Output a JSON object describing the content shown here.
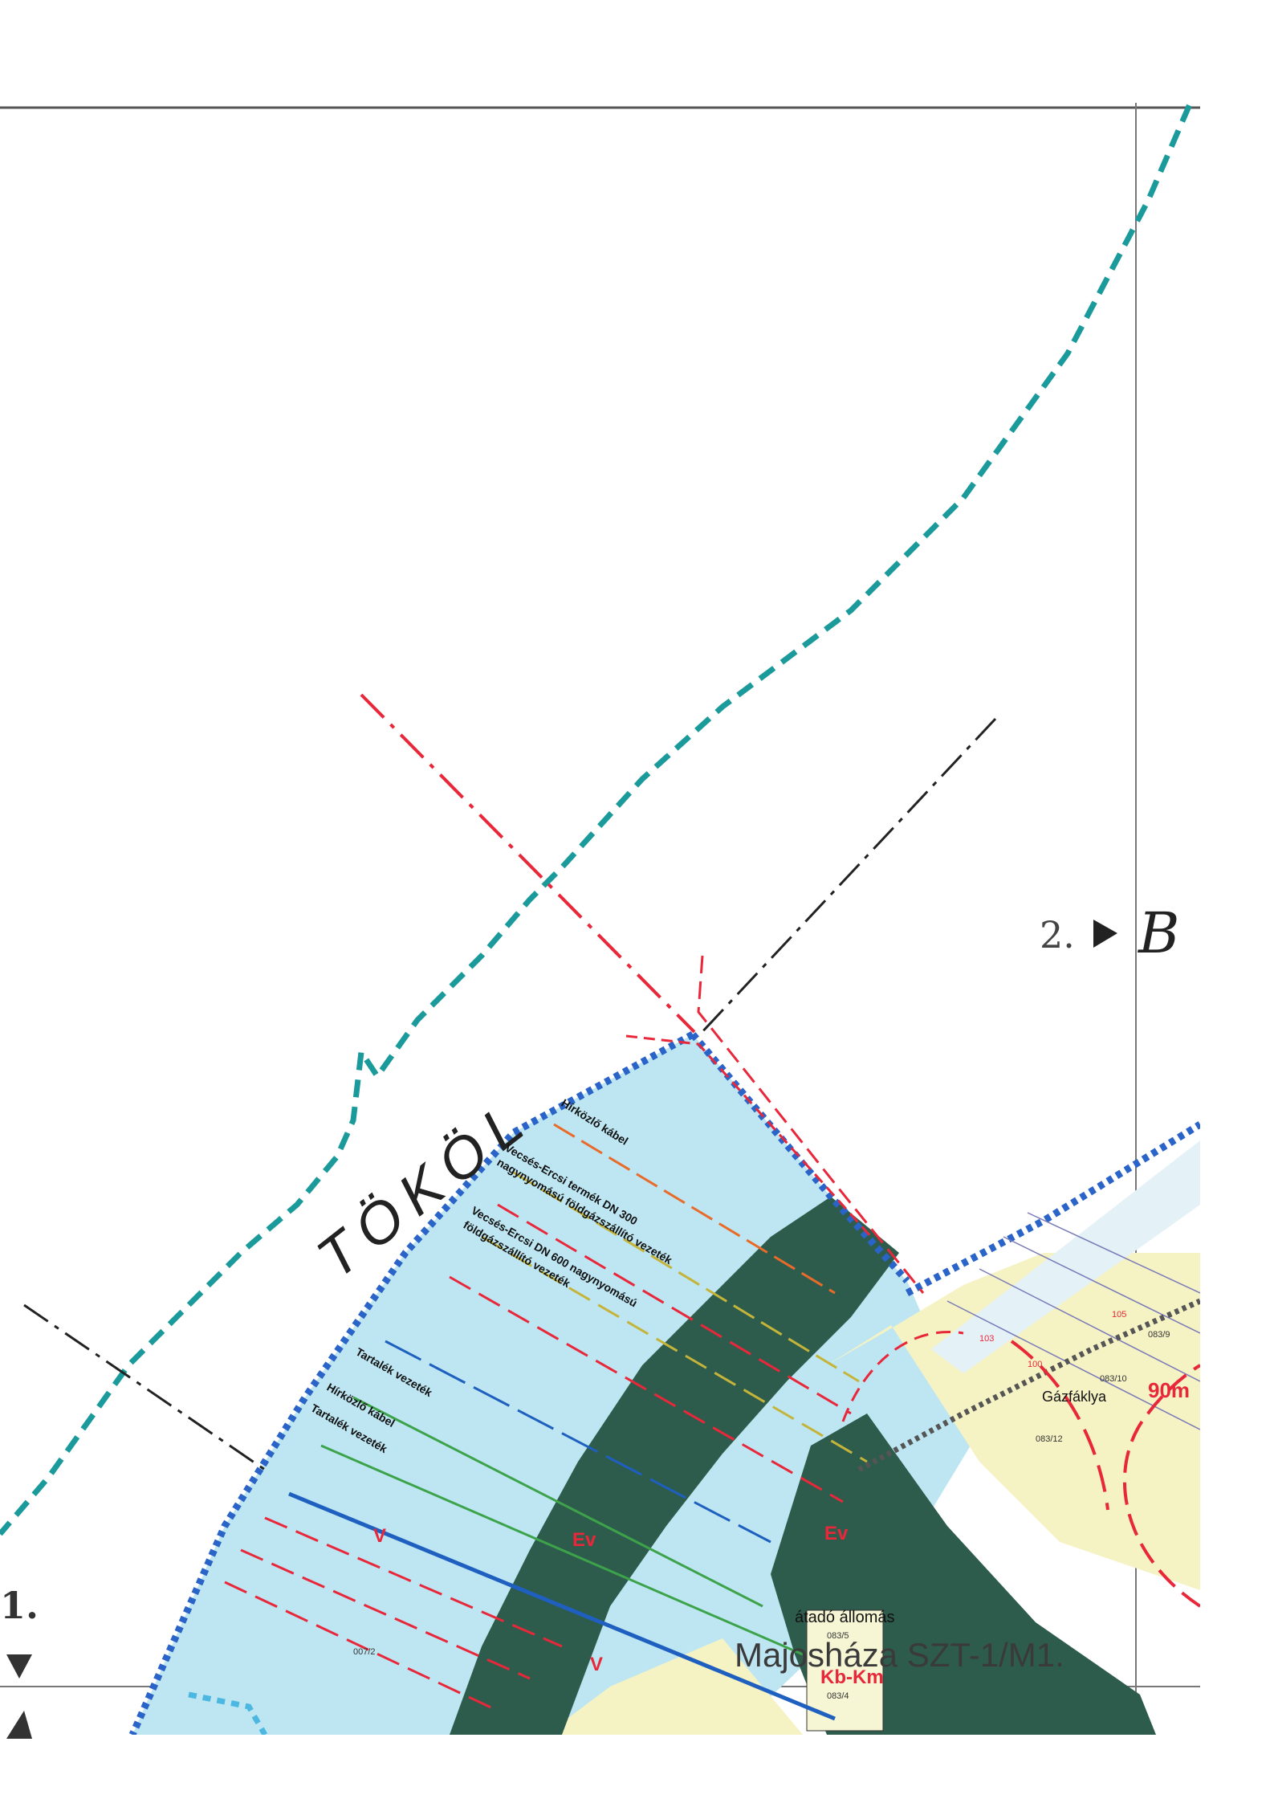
{
  "map": {
    "settlement_label": "TÖKÖL",
    "sheet_left_label": "1.",
    "sheet_right_label": "2.",
    "right_partial_glyph": "B",
    "utility_labels": {
      "telecom_cable_top": "Hírközlő kábel",
      "gas_dn300_line1": "Vecsés-Ercsi termék DN 300",
      "gas_dn300_line2": "nagynyomású földgázszállító vezeték",
      "gas_dn600_line1": "Vecsés-Ercsi DN 600 nagynyomású",
      "gas_dn600_line2": "földgázszállító vezeték",
      "tank_pipe_1": "Tartalék vezeték",
      "telecom_cable_bottom": "Hírközlő kábel",
      "tank_pipe_2": "Tartalék vezeték"
    },
    "zone_codes": {
      "v_1": "V",
      "v_2": "V",
      "ev_1": "Ev",
      "ev_2": "Ev",
      "kb_km": "Kb-Km"
    },
    "facility_labels": {
      "station": "átadó állomás",
      "gas_station_short": "Gázfáklya",
      "site_name": "Majosháza SZT-1/M1."
    },
    "distance_label": "90m",
    "parcel_numbers": [
      "083/9",
      "083/12",
      "083/10",
      "083/5",
      "083/4",
      "007/2",
      "105",
      "103",
      "100"
    ],
    "colors": {
      "water_zone": "#bde6f2",
      "forest_zone": "#2e5c4c",
      "agri_zone": "#f5f2c4",
      "border_teal": "#1a9a9a",
      "protection_red": "#e8283a",
      "utility_blue": "#1e5fbf",
      "utility_green": "#3da34a",
      "utility_yellow": "#c4b43a",
      "sheet_frame": "#6e6e6e",
      "zone_border_blue": "#2a64c8"
    }
  }
}
